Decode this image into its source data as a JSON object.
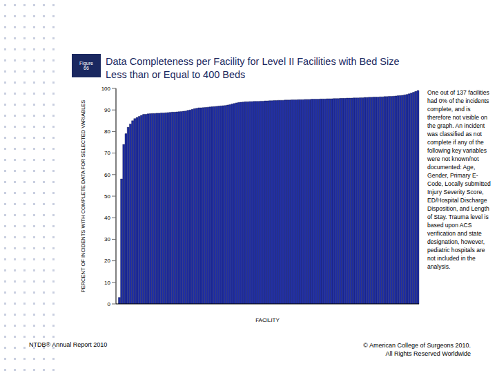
{
  "chart_data": {
    "type": "bar",
    "figure_label": "Figure 66",
    "title": "Data Completeness per Facility for Level II Facilities with Bed Size Less than or Equal to 400 Beds",
    "x_label": "FACILITY",
    "y_label": "PERCENT OF INCIDENTS WITH COMPLETE DATA FOR SELECTED VARIABLES",
    "values": [
      0,
      3,
      58,
      74,
      79,
      82,
      83.5,
      85,
      86,
      86.5,
      87,
      87.5,
      88,
      88,
      88.2,
      88.3,
      88.4,
      88.4,
      88.5,
      88.5,
      88.6,
      88.6,
      88.7,
      88.8,
      88.9,
      89,
      89,
      89.1,
      89.2,
      89.3,
      89.4,
      89.5,
      89.8,
      90,
      90.3,
      90.6,
      90.8,
      91,
      91,
      91.1,
      91.2,
      91.3,
      91.4,
      91.5,
      91.6,
      91.7,
      91.8,
      91.9,
      92,
      92.1,
      92.3,
      92.5,
      92.8,
      93,
      93.3,
      93.5,
      93.6,
      93.7,
      93.8,
      93.8,
      93.9,
      93.9,
      94,
      94,
      94,
      94.1,
      94.1,
      94.2,
      94.2,
      94.3,
      94.3,
      94.4,
      94.4,
      94.5,
      94.5,
      94.5,
      94.6,
      94.6,
      94.6,
      94.7,
      94.7,
      94.7,
      94.8,
      94.8,
      94.8,
      94.9,
      94.9,
      94.9,
      95,
      95,
      95,
      95,
      95.1,
      95.1,
      95.1,
      95.2,
      95.2,
      95.2,
      95.3,
      95.3,
      95.3,
      95.4,
      95.4,
      95.4,
      95.5,
      95.5,
      95.5,
      95.6,
      95.6,
      95.6,
      95.7,
      95.7,
      95.8,
      95.8,
      95.9,
      95.9,
      96,
      96,
      96,
      96.1,
      96.1,
      96.2,
      96.2,
      96.3,
      96.3,
      96.4,
      96.5,
      96.6,
      96.7,
      96.8,
      97,
      97.2,
      97.5,
      97.8,
      98.2,
      98.6,
      99
    ],
    "color": "#1f2ea6",
    "ylim": [
      0,
      100
    ],
    "yticks": [
      0,
      10,
      20,
      30,
      40,
      50,
      60,
      70,
      80,
      90,
      100
    ],
    "grid": false,
    "tick_labels": "y",
    "annotation": "One out of 137 facilities had 0% of the incidents complete, and is therefore not visible on the graph.  An incident was classified as not complete if any of the following key variables were not known/not documented: Age, Gender, Primary E-Code, Locally submitted Injury Severity Score, ED/Hospital Discharge Disposition, and Length of Stay.  Trauma level is based upon ACS verification and state designation, however, pediatric hospitals are not included in the analysis.",
    "footer_left": "NTDB® Annual Report 2010",
    "footer_right": "© American College of Surgeons 2010.  All Rights Reserved Worldwide"
  }
}
